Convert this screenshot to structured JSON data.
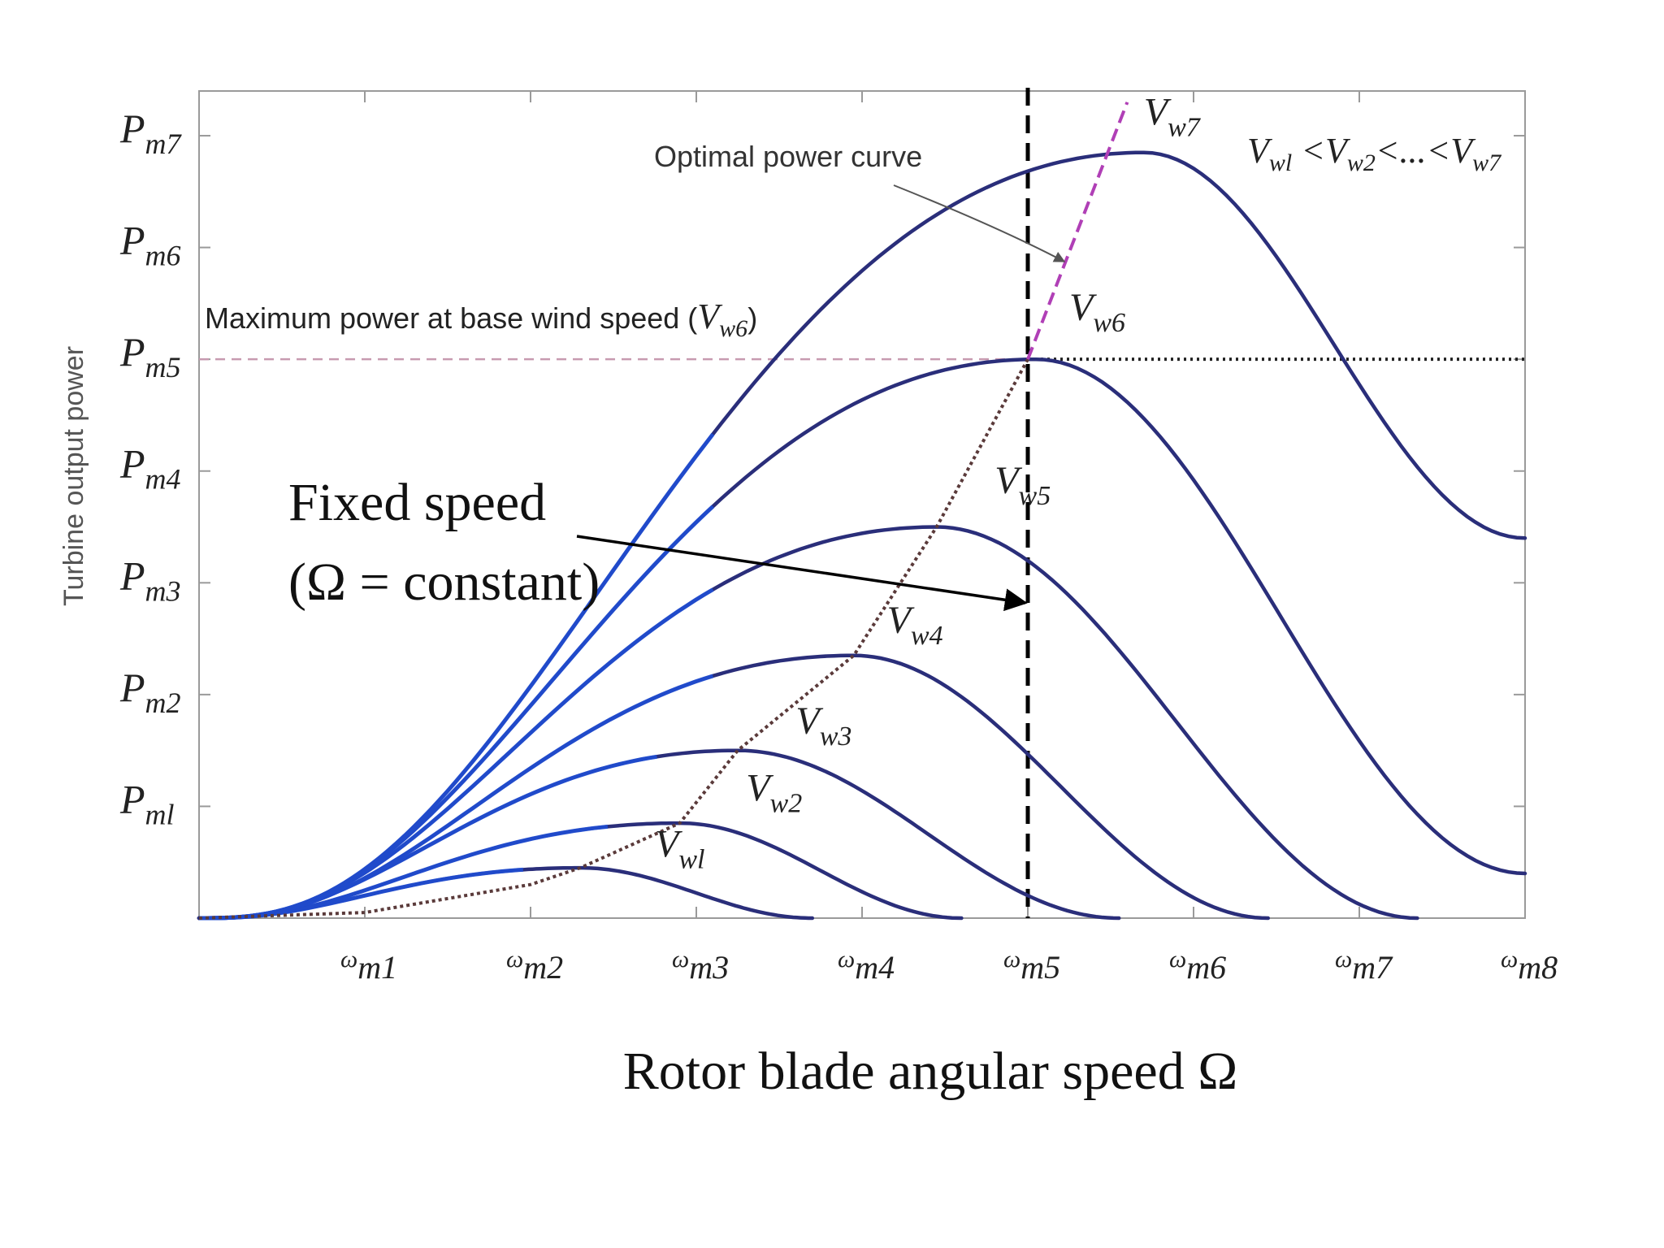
{
  "chart_data": {
    "type": "line",
    "title": "",
    "xlabel": "Rotor blade angular speed Ω",
    "ylabel": "Turbine output power",
    "xlim": [
      0,
      8
    ],
    "ylim": [
      0,
      7.4
    ],
    "x_ticks": [
      {
        "value": 1,
        "sym": "ω",
        "sub": "m1"
      },
      {
        "value": 2,
        "sym": "ω",
        "sub": "m2"
      },
      {
        "value": 3,
        "sym": "ω",
        "sub": "m3"
      },
      {
        "value": 4,
        "sym": "ω",
        "sub": "m4"
      },
      {
        "value": 5,
        "sym": "ω",
        "sub": "m5"
      },
      {
        "value": 6,
        "sym": "ω",
        "sub": "m6"
      },
      {
        "value": 7,
        "sym": "ω",
        "sub": "m7"
      },
      {
        "value": 8,
        "sym": "ω",
        "sub": "m8"
      }
    ],
    "y_ticks": [
      {
        "value": 1,
        "sym": "P",
        "sub": "ml"
      },
      {
        "value": 2,
        "sym": "P",
        "sub": "m2"
      },
      {
        "value": 3,
        "sym": "P",
        "sub": "m3"
      },
      {
        "value": 4,
        "sym": "P",
        "sub": "m4"
      },
      {
        "value": 5,
        "sym": "P",
        "sub": "m5"
      },
      {
        "value": 6,
        "sym": "P",
        "sub": "m6"
      },
      {
        "value": 7,
        "sym": "P",
        "sub": "m7"
      }
    ],
    "series": [
      {
        "name": "V_w1",
        "sym": "V",
        "sub": "wl",
        "peak_x": 2.3,
        "peak_y": 0.45,
        "end_x": 3.7,
        "end_y": 0.0
      },
      {
        "name": "V_w2",
        "sym": "V",
        "sub": "w2",
        "peak_x": 2.9,
        "peak_y": 0.85,
        "end_x": 4.6,
        "end_y": 0.0
      },
      {
        "name": "V_w3",
        "sym": "V",
        "sub": "w3",
        "peak_x": 3.25,
        "peak_y": 1.5,
        "end_x": 5.55,
        "end_y": 0.0
      },
      {
        "name": "V_w4",
        "sym": "V",
        "sub": "w4",
        "peak_x": 3.95,
        "peak_y": 2.35,
        "end_x": 6.45,
        "end_y": 0.0
      },
      {
        "name": "V_w5",
        "sym": "V",
        "sub": "w5",
        "peak_x": 4.45,
        "peak_y": 3.5,
        "end_x": 7.35,
        "end_y": 0.0
      },
      {
        "name": "V_w6",
        "sym": "V",
        "sub": "w6",
        "peak_x": 5.05,
        "peak_y": 5.0,
        "end_x": 8.0,
        "end_y": 0.4
      },
      {
        "name": "V_w7",
        "sym": "V",
        "sub": "w7",
        "peak_x": 5.7,
        "peak_y": 6.85,
        "end_x": 8.0,
        "end_y": 3.4
      }
    ],
    "optimal_power_curve": {
      "x": [
        0,
        1,
        2,
        2.3,
        2.9,
        3.25,
        3.95,
        4.45,
        5.0,
        5.6
      ],
      "y": [
        0,
        0.05,
        0.3,
        0.45,
        0.85,
        1.5,
        2.35,
        3.5,
        5.0,
        7.3
      ]
    },
    "fixed_speed_line_x": 5,
    "max_power_line_y": 5,
    "annotations": {
      "optimal_label": "Optimal power curve",
      "max_power_label": "Maximum power at base wind speed (",
      "max_power_sym": "V",
      "max_power_sub": "w6",
      "max_power_close": ")",
      "fixed_speed_line1": "Fixed speed",
      "fixed_speed_line2": "(Ω = constant)",
      "inequality": "V_wl < V_w2 < ... < V_w7"
    },
    "grid": false,
    "legend": "none"
  },
  "colors": {
    "curve": "#2a2e7a",
    "curve_low": "#1f4fd8",
    "optimal": "#b03fb6",
    "optimal_low": "#5a3a3a",
    "axis": "#9a9a9a",
    "text": "#222222"
  }
}
